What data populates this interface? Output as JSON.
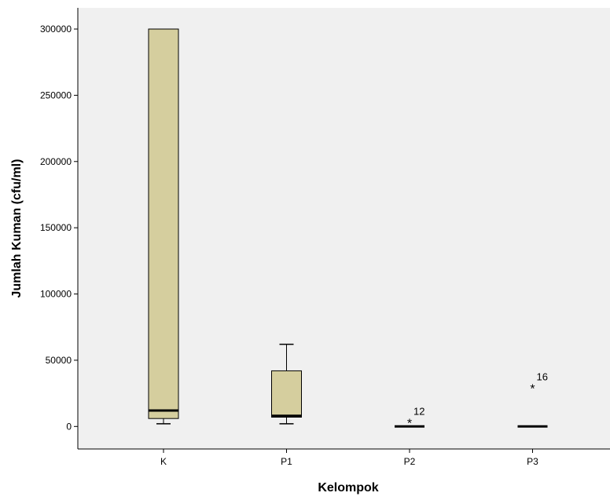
{
  "chart_data": {
    "type": "boxplot",
    "xlabel": "Kelompok",
    "ylabel": "Jumlah Kuman (cfu/ml)",
    "ylim": [
      -17000,
      316000
    ],
    "yticks": [
      0,
      50000,
      100000,
      150000,
      200000,
      250000,
      300000
    ],
    "ytick_labels": [
      "0",
      "50000",
      "100000",
      "150000",
      "200000",
      "250000",
      "300000"
    ],
    "grid": false,
    "legend": "none",
    "colors": {
      "background": "#f0f0f0",
      "box_fill": "#d5ce9e",
      "stroke": "#000000"
    },
    "categories": [
      "K",
      "P1",
      "P2",
      "P3"
    ],
    "boxes": [
      {
        "category": "K",
        "min": 2000,
        "q1": 6000,
        "median": 12000,
        "q3": 300000,
        "max": 300000,
        "outliers": []
      },
      {
        "category": "P1",
        "min": 2000,
        "q1": 7000,
        "median": 8000,
        "q3": 42000,
        "max": 62000,
        "outliers": []
      },
      {
        "category": "P2",
        "min": 0,
        "q1": 0,
        "median": 0,
        "q3": 0,
        "max": 0,
        "outliers": [
          {
            "value": 4000,
            "label": "12"
          }
        ]
      },
      {
        "category": "P3",
        "min": 0,
        "q1": 0,
        "median": 0,
        "q3": 0,
        "max": 0,
        "outliers": [
          {
            "value": 30000,
            "label": "16"
          }
        ]
      }
    ]
  }
}
